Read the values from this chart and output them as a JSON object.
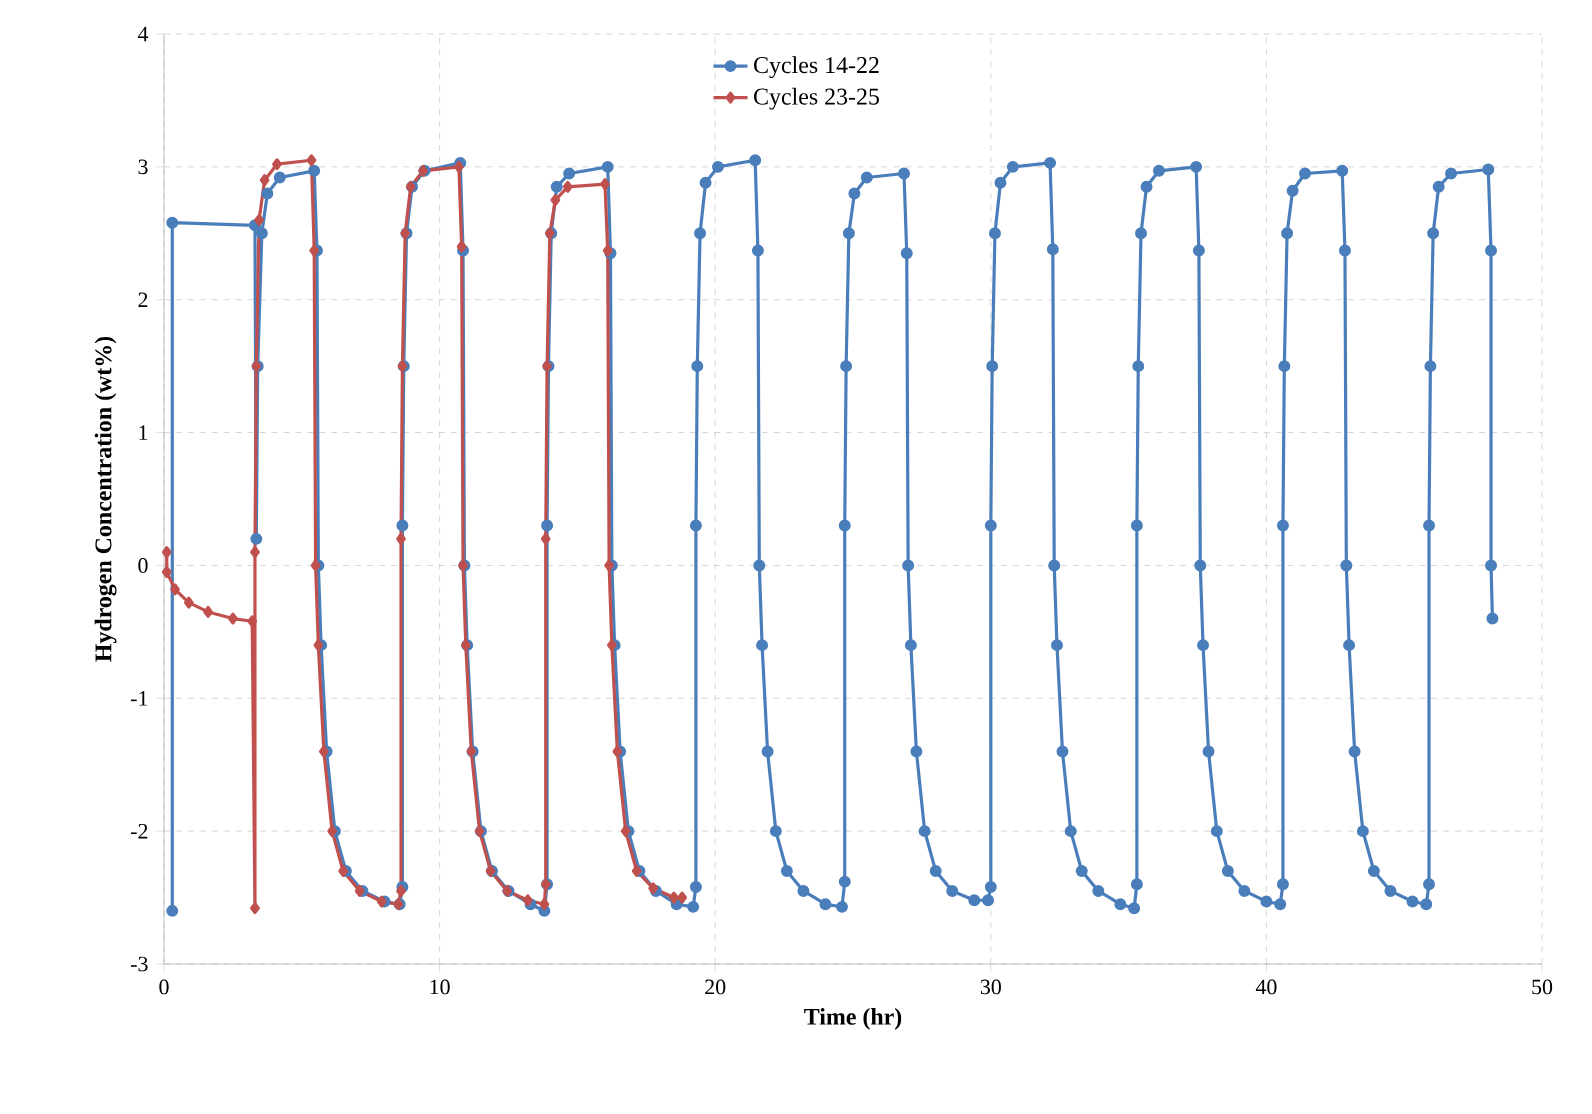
{
  "chart_data": {
    "type": "line",
    "xlabel": "Time (hr)",
    "ylabel": "Hydrogen Concentration (wt%)",
    "xlim": [
      0,
      50
    ],
    "ylim": [
      -3,
      4
    ],
    "xticks": [
      0,
      10,
      20,
      30,
      40,
      50
    ],
    "yticks": [
      -3,
      -2,
      -1,
      0,
      1,
      2,
      3,
      4
    ],
    "grid": true,
    "legend": "top",
    "line_style": "solid",
    "series": [
      {
        "name": "Cycles 14-22",
        "color": "#4a7ebb",
        "marker": "circle",
        "x": [
          0.3,
          0.3,
          3.3,
          3.35,
          3.4,
          3.55,
          3.75,
          4.2,
          5.45,
          5.55,
          5.6,
          5.7,
          5.9,
          6.2,
          6.6,
          7.2,
          8.0,
          8.55,
          8.65,
          8.65,
          8.7,
          8.8,
          9.0,
          9.45,
          10.75,
          10.85,
          10.9,
          11.0,
          11.2,
          11.5,
          11.9,
          12.5,
          13.3,
          13.8,
          13.9,
          13.9,
          13.95,
          14.05,
          14.25,
          14.7,
          16.1,
          16.2,
          16.25,
          16.35,
          16.55,
          16.85,
          17.25,
          17.85,
          18.6,
          19.2,
          19.3,
          19.3,
          19.35,
          19.45,
          19.65,
          20.1,
          21.45,
          21.55,
          21.6,
          21.7,
          21.9,
          22.2,
          22.6,
          23.2,
          24.0,
          24.6,
          24.7,
          24.7,
          24.75,
          24.85,
          25.05,
          25.5,
          26.85,
          26.95,
          27.0,
          27.1,
          27.3,
          27.6,
          28.0,
          28.6,
          29.4,
          29.9,
          30.0,
          30.0,
          30.05,
          30.15,
          30.35,
          30.8,
          32.15,
          32.25,
          32.3,
          32.4,
          32.6,
          32.9,
          33.3,
          33.9,
          34.7,
          35.2,
          35.3,
          35.3,
          35.35,
          35.45,
          35.65,
          36.1,
          37.45,
          37.55,
          37.6,
          37.7,
          37.9,
          38.2,
          38.6,
          39.2,
          40.0,
          40.5,
          40.6,
          40.6,
          40.65,
          40.75,
          40.95,
          41.4,
          42.75,
          42.85,
          42.9,
          43.0,
          43.2,
          43.5,
          43.9,
          44.5,
          45.3,
          45.8,
          45.9,
          45.9,
          45.95,
          46.05,
          46.25,
          46.7,
          48.05,
          48.15,
          48.15,
          48.2
        ],
        "values": [
          -2.6,
          2.58,
          2.56,
          0.2,
          1.5,
          2.5,
          2.8,
          2.92,
          2.97,
          2.37,
          0,
          -0.6,
          -1.4,
          -2.0,
          -2.3,
          -2.45,
          -2.53,
          -2.55,
          -2.42,
          0.3,
          1.5,
          2.5,
          2.85,
          2.97,
          3.03,
          2.37,
          0,
          -0.6,
          -1.4,
          -2.0,
          -2.3,
          -2.45,
          -2.55,
          -2.6,
          -2.4,
          0.3,
          1.5,
          2.5,
          2.85,
          2.95,
          3.0,
          2.35,
          0,
          -0.6,
          -1.4,
          -2.0,
          -2.3,
          -2.45,
          -2.55,
          -2.57,
          -2.42,
          0.3,
          1.5,
          2.5,
          2.88,
          3.0,
          3.05,
          2.37,
          0,
          -0.6,
          -1.4,
          -2.0,
          -2.3,
          -2.45,
          -2.55,
          -2.57,
          -2.38,
          0.3,
          1.5,
          2.5,
          2.8,
          2.92,
          2.95,
          2.35,
          0,
          -0.6,
          -1.4,
          -2.0,
          -2.3,
          -2.45,
          -2.52,
          -2.52,
          -2.42,
          0.3,
          1.5,
          2.5,
          2.88,
          3.0,
          3.03,
          2.38,
          0,
          -0.6,
          -1.4,
          -2.0,
          -2.3,
          -2.45,
          -2.55,
          -2.58,
          -2.4,
          0.3,
          1.5,
          2.5,
          2.85,
          2.97,
          3.0,
          2.37,
          0,
          -0.6,
          -1.4,
          -2.0,
          -2.3,
          -2.45,
          -2.53,
          -2.55,
          -2.4,
          0.3,
          1.5,
          2.5,
          2.82,
          2.95,
          2.97,
          2.37,
          0,
          -0.6,
          -1.4,
          -2.0,
          -2.3,
          -2.45,
          -2.53,
          -2.55,
          -2.4,
          0.3,
          1.5,
          2.5,
          2.85,
          2.95,
          2.98,
          2.37,
          0,
          -0.4
        ]
      },
      {
        "name": "Cycles 23-25",
        "color": "#c0504d",
        "marker": "diamond",
        "x": [
          0.1,
          0.1,
          0.4,
          0.9,
          1.6,
          2.5,
          3.2,
          3.3,
          3.3,
          3.35,
          3.45,
          3.65,
          4.1,
          5.35,
          5.45,
          5.5,
          5.6,
          5.8,
          6.1,
          6.5,
          7.1,
          7.9,
          8.5,
          8.6,
          8.6,
          8.65,
          8.75,
          8.95,
          9.4,
          10.7,
          10.8,
          10.85,
          10.95,
          11.15,
          11.45,
          11.85,
          12.45,
          13.2,
          13.8,
          13.85,
          13.85,
          13.9,
          14.0,
          14.2,
          14.65,
          16.0,
          16.1,
          16.15,
          16.25,
          16.45,
          16.75,
          17.15,
          17.75,
          18.5,
          18.8
        ],
        "values": [
          0.1,
          -0.05,
          -0.18,
          -0.28,
          -0.35,
          -0.4,
          -0.42,
          -2.58,
          0.1,
          1.5,
          2.6,
          2.9,
          3.02,
          3.05,
          2.37,
          0,
          -0.6,
          -1.4,
          -2.0,
          -2.3,
          -2.45,
          -2.53,
          -2.55,
          -2.45,
          0.2,
          1.5,
          2.5,
          2.85,
          2.97,
          3.0,
          2.4,
          0,
          -0.6,
          -1.4,
          -2.0,
          -2.3,
          -2.45,
          -2.52,
          -2.55,
          -2.4,
          0.2,
          1.5,
          2.5,
          2.75,
          2.85,
          2.87,
          2.37,
          0,
          -0.6,
          -1.4,
          -2.0,
          -2.3,
          -2.43,
          -2.5,
          -2.5
        ]
      }
    ]
  }
}
